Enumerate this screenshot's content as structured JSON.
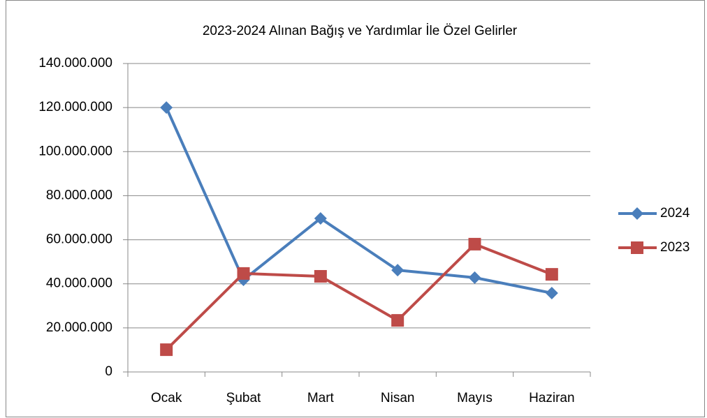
{
  "chart_data": {
    "type": "line",
    "title": "2023-2024 Alınan Bağış ve Yardımlar İle Özel Gelirler",
    "categories": [
      "Ocak",
      "Şubat",
      "Mart",
      "Nisan",
      "Mayıs",
      "Haziran"
    ],
    "series": [
      {
        "name": "2024",
        "color": "#4a7ebb",
        "marker": "diamond",
        "values": [
          120000000,
          41800000,
          69700000,
          46200000,
          42800000,
          35800000
        ]
      },
      {
        "name": "2023",
        "color": "#be4b48",
        "marker": "square",
        "values": [
          10100000,
          44700000,
          43400000,
          23400000,
          58000000,
          44300000
        ]
      }
    ],
    "ylim": [
      0,
      140000000
    ],
    "yticks": [
      0,
      {
        "value": 20000000,
        "label": "20.000.000"
      },
      {
        "value": 40000000,
        "label": "40.000.000"
      },
      {
        "value": 60000000,
        "label": "60.000.000"
      },
      {
        "value": 80000000,
        "label": "80.000.000"
      },
      {
        "value": 100000000,
        "label": "100.000.000"
      },
      {
        "value": 120000000,
        "label": "120.000.000"
      },
      {
        "value": 140000000,
        "label": "140.000.000"
      }
    ],
    "grid": true,
    "legend": "right"
  }
}
